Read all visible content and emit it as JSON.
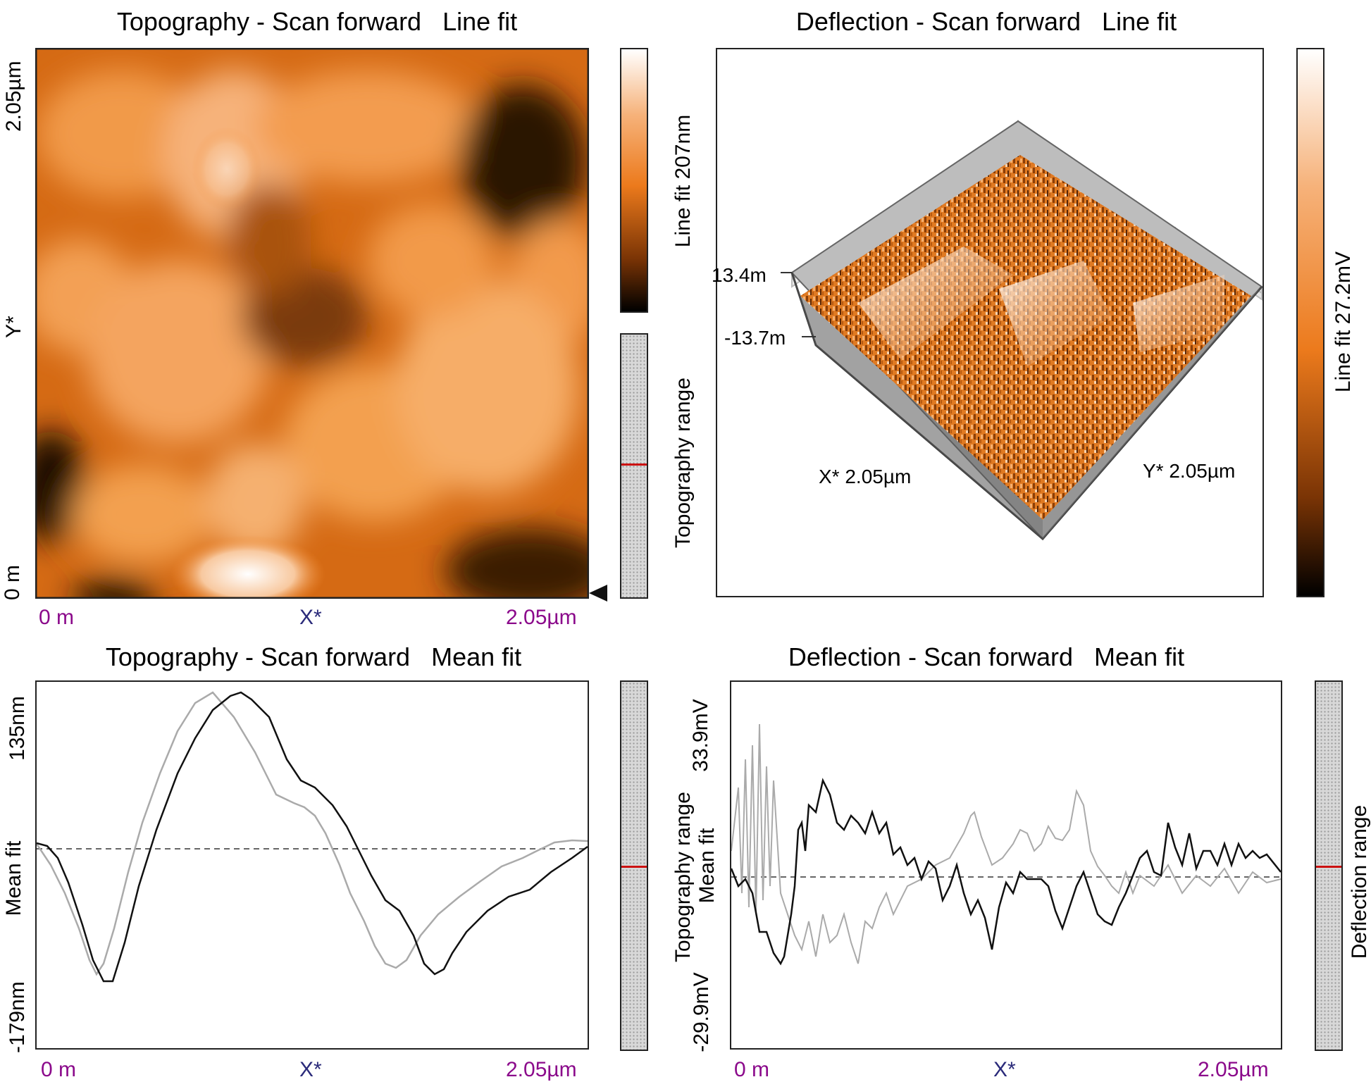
{
  "panels": {
    "topo_image": {
      "title": "Topography - Scan forward   Line fit",
      "y_top": "2.05µm",
      "y_mid": "Y*",
      "y_bottom": "0 m",
      "x_left": "0 m",
      "x_mid": "X*",
      "x_right": "2.05µm",
      "colorbar_label": "Line fit 207nm",
      "range_label": "Topography range",
      "range_marker_fraction": 0.49
    },
    "defl_3d": {
      "title": "Deflection - Scan forward   Line fit",
      "z_top": "13.4m",
      "z_bottom": "-13.7m",
      "x_axis": "X* 2.05µm",
      "y_axis": "Y* 2.05µm",
      "colorbar_label": "Line fit 27.2mV"
    },
    "topo_profile": {
      "title": "Topography - Scan forward   Mean fit",
      "y_top": "135nm",
      "y_mid": "Mean fit",
      "y_bottom": "-179nm",
      "x_left": "0 m",
      "x_mid": "X*",
      "x_right": "2.05µm",
      "range_label": "Topography range",
      "range_marker_fraction": 0.5
    },
    "defl_profile": {
      "title": "Deflection - Scan forward   Mean fit",
      "y_top": "33.9mV",
      "y_mid": "Mean fit",
      "y_bottom": "-29.9mV",
      "x_left": "0 m",
      "x_mid": "X*",
      "x_right": "2.05µm",
      "range_label": "Deflection range",
      "range_marker_fraction": 0.5
    }
  },
  "colors": {
    "copper_dark": "#000000",
    "copper_mid": "#f07d1c",
    "copper_light": "#ffffff",
    "trace_forward": "#111111",
    "trace_backward": "#aaaaaa",
    "range_marker": "#cc1111"
  }
}
